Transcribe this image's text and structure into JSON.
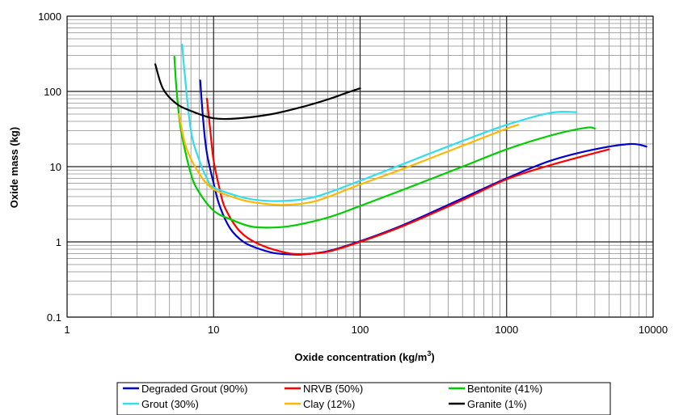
{
  "chart_data": {
    "type": "line",
    "xlabel": "Oxide concentration (kg/m",
    "xlabel_sup": "3",
    "xlabel_end": ")",
    "ylabel": "Oxide mass (kg)",
    "xscale": "log",
    "yscale": "log",
    "xlim": [
      1,
      10000
    ],
    "ylim": [
      0.1,
      1000
    ],
    "x_ticks": [
      "1",
      "10",
      "100",
      "1000",
      "10000"
    ],
    "y_ticks": [
      "0.1",
      "1",
      "10",
      "100",
      "1000"
    ],
    "grid": true,
    "legend_position": "bottom",
    "series": [
      {
        "name": "Degraded Grout (90%)",
        "color": "#0000cc",
        "points": [
          [
            8.1,
            140
          ],
          [
            8.5,
            40
          ],
          [
            9,
            15
          ],
          [
            10,
            6
          ],
          [
            11,
            3
          ],
          [
            13,
            1.5
          ],
          [
            16,
            1.0
          ],
          [
            20,
            0.82
          ],
          [
            25,
            0.72
          ],
          [
            30,
            0.69
          ],
          [
            40,
            0.68
          ],
          [
            60,
            0.75
          ],
          [
            100,
            1.02
          ],
          [
            200,
            1.7
          ],
          [
            500,
            3.8
          ],
          [
            1000,
            7
          ],
          [
            2000,
            12
          ],
          [
            4000,
            17
          ],
          [
            7000,
            20
          ],
          [
            9000,
            18.5
          ]
        ]
      },
      {
        "name": "NRVB (50%)",
        "color": "#ff0000",
        "points": [
          [
            9,
            80
          ],
          [
            9.5,
            30
          ],
          [
            10,
            12
          ],
          [
            11,
            5
          ],
          [
            12,
            2.8
          ],
          [
            15,
            1.4
          ],
          [
            20,
            0.95
          ],
          [
            30,
            0.73
          ],
          [
            40,
            0.69
          ],
          [
            60,
            0.74
          ],
          [
            100,
            1.0
          ],
          [
            200,
            1.65
          ],
          [
            500,
            3.6
          ],
          [
            1000,
            6.8
          ],
          [
            2000,
            10.5
          ],
          [
            5000,
            17
          ]
        ]
      },
      {
        "name": "Bentonite (41%)",
        "color": "#00cc00",
        "points": [
          [
            5.4,
            290
          ],
          [
            5.6,
            100
          ],
          [
            6,
            30
          ],
          [
            7,
            8
          ],
          [
            8,
            4.5
          ],
          [
            10,
            2.6
          ],
          [
            13,
            2.0
          ],
          [
            18,
            1.6
          ],
          [
            25,
            1.55
          ],
          [
            35,
            1.65
          ],
          [
            60,
            2.1
          ],
          [
            100,
            3.0
          ],
          [
            200,
            5.0
          ],
          [
            500,
            10
          ],
          [
            1000,
            17
          ],
          [
            2000,
            26
          ],
          [
            3500,
            33
          ],
          [
            4000,
            32
          ]
        ]
      },
      {
        "name": "Grout (30%)",
        "color": "#33ddee",
        "points": [
          [
            6.1,
            420
          ],
          [
            6.3,
            200
          ],
          [
            7,
            30
          ],
          [
            8,
            12
          ],
          [
            9,
            7
          ],
          [
            10,
            5.3
          ],
          [
            15,
            4
          ],
          [
            20,
            3.6
          ],
          [
            30,
            3.5
          ],
          [
            50,
            4
          ],
          [
            100,
            6.5
          ],
          [
            200,
            11
          ],
          [
            500,
            22
          ],
          [
            1000,
            36
          ],
          [
            2000,
            52
          ],
          [
            3000,
            53
          ]
        ]
      },
      {
        "name": "Clay (12%)",
        "color": "#ffb800",
        "points": [
          [
            5.8,
            50
          ],
          [
            6.5,
            18
          ],
          [
            8,
            8
          ],
          [
            10,
            5
          ],
          [
            15,
            3.7
          ],
          [
            20,
            3.3
          ],
          [
            30,
            3.1
          ],
          [
            50,
            3.5
          ],
          [
            100,
            5.8
          ],
          [
            200,
            9.5
          ],
          [
            500,
            19
          ],
          [
            1000,
            32
          ],
          [
            1200,
            36
          ]
        ]
      },
      {
        "name": "Granite (1%)",
        "color": "#000000",
        "points": [
          [
            4,
            230
          ],
          [
            4.5,
            110
          ],
          [
            5.5,
            70
          ],
          [
            7,
            55
          ],
          [
            10,
            44
          ],
          [
            15,
            44
          ],
          [
            25,
            50
          ],
          [
            40,
            62
          ],
          [
            60,
            78
          ],
          [
            80,
            95
          ],
          [
            100,
            110
          ]
        ]
      }
    ]
  }
}
